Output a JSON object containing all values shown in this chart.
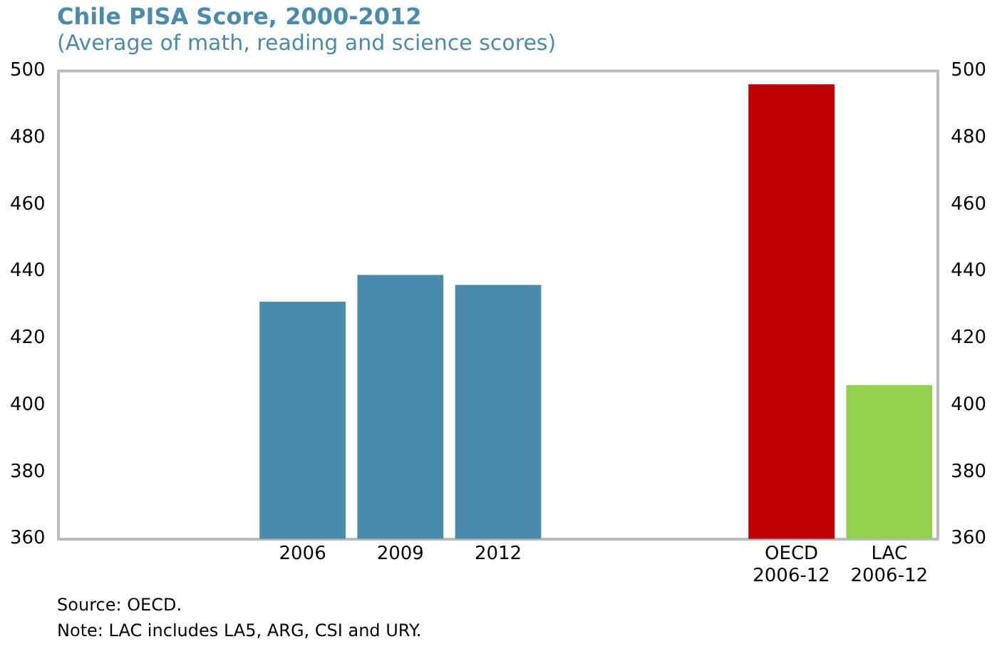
{
  "chart_data": {
    "type": "bar",
    "title": "Chile PISA Score, 2000-2012",
    "subtitle": "(Average of math, reading and science scores)",
    "categories": [
      null,
      null,
      "2006",
      "2009",
      "2012",
      null,
      null,
      "OECD 2006-12",
      "LAC 2006-12"
    ],
    "values": [
      null,
      null,
      431,
      439,
      436,
      null,
      null,
      496,
      406
    ],
    "colors": [
      "#4a8bad",
      "#4a8bad",
      "#4a8bad",
      "#4a8bad",
      "#4a8bad",
      "#4a8bad",
      "#c00000",
      "#c00000",
      "#92d050"
    ],
    "ylim": [
      360,
      500
    ],
    "yticks": [
      360,
      380,
      400,
      420,
      440,
      460,
      480,
      500
    ],
    "y2lim": [
      360,
      500
    ],
    "y2ticks": [
      360,
      380,
      400,
      420,
      440,
      460,
      480,
      500
    ],
    "grid": false,
    "legend": false,
    "annotations": [
      "Source: OECD.",
      "Note: LAC includes LA5, ARG, CSI and URY."
    ]
  }
}
